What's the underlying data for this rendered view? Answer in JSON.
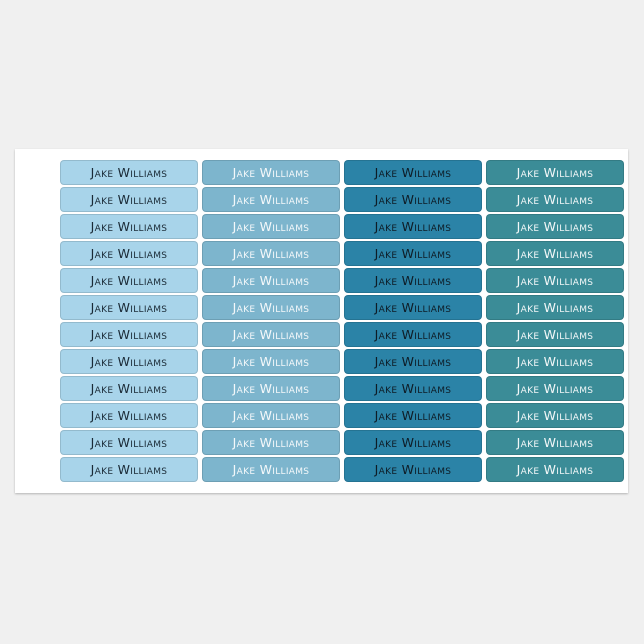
{
  "sheet": {
    "columns": [
      {
        "background": "#a8d4ea",
        "text_color": "#1a2a36",
        "labels": [
          "Jake Williams",
          "Jake Williams",
          "Jake Williams",
          "Jake Williams",
          "Jake Williams",
          "Jake Williams",
          "Jake Williams",
          "Jake Williams",
          "Jake Williams",
          "Jake Williams",
          "Jake Williams",
          "Jake Williams"
        ]
      },
      {
        "background": "#7db5cd",
        "text_color": "#f4f8fa",
        "labels": [
          "Jake Williams",
          "Jake Williams",
          "Jake Williams",
          "Jake Williams",
          "Jake Williams",
          "Jake Williams",
          "Jake Williams",
          "Jake Williams",
          "Jake Williams",
          "Jake Williams",
          "Jake Williams",
          "Jake Williams"
        ]
      },
      {
        "background": "#2b83a7",
        "text_color": "#0e1c26",
        "labels": [
          "Jake Williams",
          "Jake Williams",
          "Jake Williams",
          "Jake Williams",
          "Jake Williams",
          "Jake Williams",
          "Jake Williams",
          "Jake Williams",
          "Jake Williams",
          "Jake Williams",
          "Jake Williams",
          "Jake Williams"
        ]
      },
      {
        "background": "#3b8c97",
        "text_color": "#f2f7f8",
        "labels": [
          "Jake Williams",
          "Jake Williams",
          "Jake Williams",
          "Jake Williams",
          "Jake Williams",
          "Jake Williams",
          "Jake Williams",
          "Jake Williams",
          "Jake Williams",
          "Jake Williams",
          "Jake Williams",
          "Jake Williams"
        ]
      }
    ]
  }
}
